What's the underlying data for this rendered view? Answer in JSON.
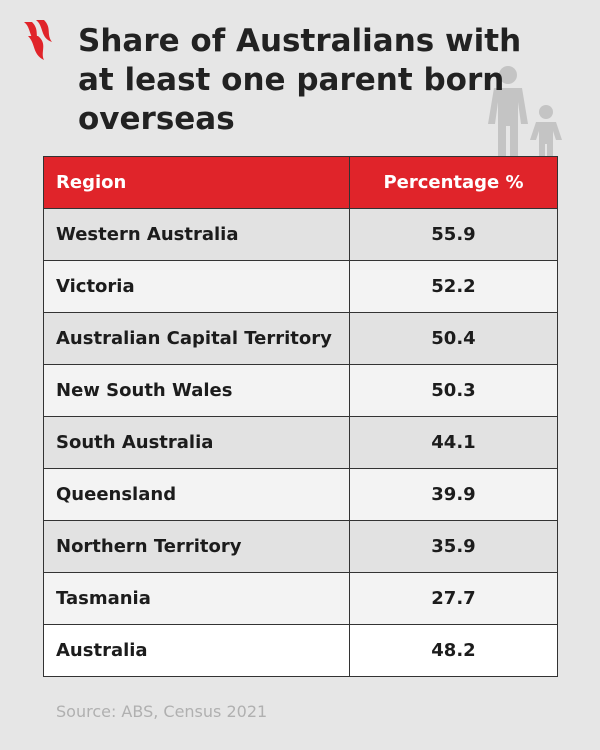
{
  "header": {
    "title": "Share of Australians with at least one parent born overseas"
  },
  "table": {
    "columns": [
      "Region",
      "Percentage %"
    ],
    "rows": [
      [
        "Western Australia",
        55.9
      ],
      [
        "Victoria",
        52.2
      ],
      [
        "Australian Capital Territory",
        50.4
      ],
      [
        "New South Wales",
        50.3
      ],
      [
        "South Australia",
        44.1
      ],
      [
        "Queensland",
        39.9
      ],
      [
        "Northern Territory",
        35.9
      ],
      [
        "Tasmania",
        27.7
      ],
      [
        "Australia",
        48.2
      ]
    ]
  },
  "footer": {
    "source": "Source: ABS, Census 2021"
  }
}
